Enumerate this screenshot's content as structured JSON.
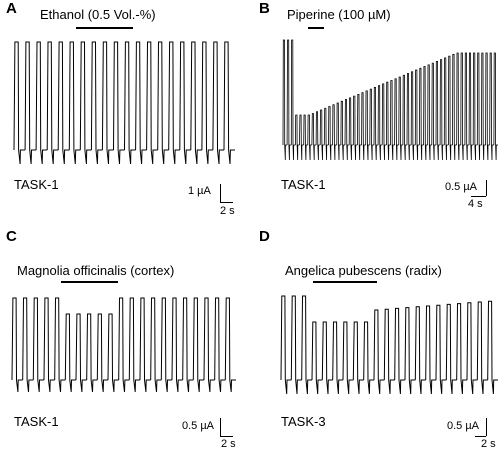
{
  "panels": [
    {
      "letter": "A",
      "drug": "Ethanol (0.5 Vol.-%)",
      "cell": "TASK-1",
      "scale_current": "1 µA",
      "scale_time": "2 s",
      "trace": {
        "spikes": 20,
        "effect": "none"
      }
    },
    {
      "letter": "B",
      "drug": "Piperine (100 µM)",
      "cell": "TASK-1",
      "scale_current": "0.5 µA",
      "scale_time": "4 s",
      "trace": {
        "spikes": 52,
        "effect": "inhibition-then-slow-recovery"
      }
    },
    {
      "letter": "C",
      "drug": "Magnolia officinalis (cortex)",
      "cell": "TASK-1",
      "scale_current": "0.5 µA",
      "scale_time": "2 s",
      "trace": {
        "spikes": 21,
        "effect": "inhibition-then-recovery"
      }
    },
    {
      "letter": "D",
      "drug": "Angelica pubescens (radix)",
      "cell": "TASK-3",
      "scale_current": "0.5 µA",
      "scale_time": "2 s",
      "trace": {
        "spikes": 21,
        "effect": "inhibition-then-recovery"
      }
    }
  ]
}
